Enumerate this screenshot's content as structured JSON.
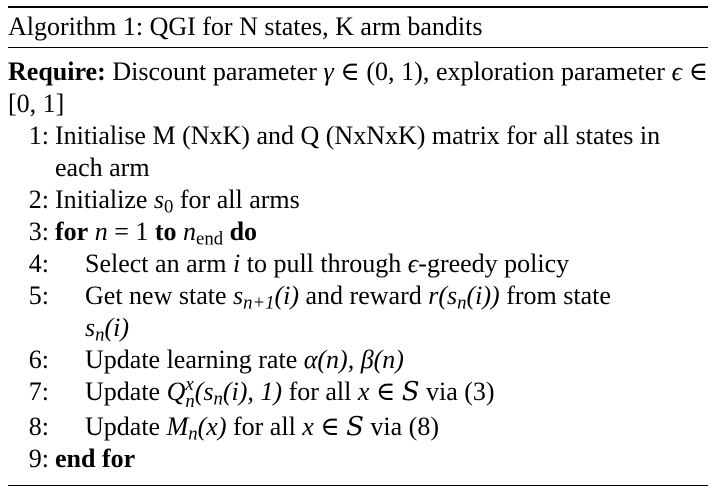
{
  "caption": {
    "label": "Algorithm 1:",
    "title": "QGI for N states, K arm bandits"
  },
  "require": {
    "keyword": "Require:",
    "text_a": "Discount parameter",
    "gamma": "γ",
    "in1": "∈",
    "range1": "(0, 1)",
    "text_b": ", exploration parameter",
    "epsilon": "ϵ",
    "in2": "∈",
    "range2": "[0, 1]"
  },
  "steps": {
    "s1": {
      "num": "1:",
      "text": "Initialise M (NxK) and Q (NxNxK) matrix for all states in each arm"
    },
    "s2": {
      "num": "2:",
      "pre": "Initialize",
      "var": "s",
      "sub": "0",
      "post": "for all arms"
    },
    "s3": {
      "num": "3:",
      "kw_for": "for",
      "var": "n",
      "eq": "= 1",
      "kw_to": "to",
      "end_var": "n",
      "end_sub": "end",
      "kw_do": "do"
    },
    "s4": {
      "num": "4:",
      "pre": "Select an arm",
      "var": "i",
      "mid": "to pull through",
      "eps": "ϵ",
      "post": "-greedy policy"
    },
    "s5": {
      "num": "5:",
      "pre": "Get new state",
      "expr1": "s",
      "expr1_sub": "n+1",
      "expr1_arg": "(i)",
      "mid": "and reward",
      "expr2": "r(s",
      "expr2_sub": "n",
      "expr2_arg": "(i))",
      "post": "from state",
      "expr3": "s",
      "expr3_sub": "n",
      "expr3_arg": "(i)"
    },
    "s6": {
      "num": "6:",
      "pre": "Update learning rate",
      "alpha": "α(n),",
      "beta": "β(n)"
    },
    "s7": {
      "num": "7:",
      "pre": "Update",
      "q": "Q",
      "q_sup": "x",
      "q_sub": "n",
      "q_arg": "(s",
      "q_arg_sub": "n",
      "q_arg_end": "(i), 1)",
      "mid": "for all",
      "x": "x",
      "in": "∈",
      "set": "S",
      "post": "via (3)"
    },
    "s8": {
      "num": "8:",
      "pre": "Update",
      "m": "M",
      "m_sub": "n",
      "m_arg": "(x)",
      "mid": "for all",
      "x": "x",
      "in": "∈",
      "set": "S",
      "post": "via (8)"
    },
    "s9": {
      "num": "9:",
      "kw_end": "end for"
    }
  }
}
